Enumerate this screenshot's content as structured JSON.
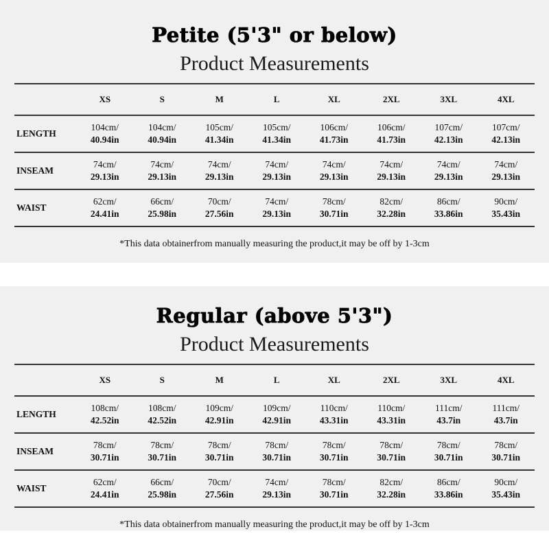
{
  "sizes": [
    "XS",
    "S",
    "M",
    "L",
    "XL",
    "2XL",
    "3XL",
    "4XL"
  ],
  "sections": [
    {
      "title": "Petite (5'3\" or below)",
      "subtitle": "Product Measurements",
      "rows": [
        {
          "label": "LENGTH",
          "cm": [
            "104cm/",
            "104cm/",
            "105cm/",
            "105cm/",
            "106cm/",
            "106cm/",
            "107cm/",
            "107cm/"
          ],
          "in": [
            "40.94in",
            "40.94in",
            "41.34in",
            "41.34in",
            "41.73in",
            "41.73in",
            "42.13in",
            "42.13in"
          ]
        },
        {
          "label": "INSEAM",
          "cm": [
            "74cm/",
            "74cm/",
            "74cm/",
            "74cm/",
            "74cm/",
            "74cm/",
            "74cm/",
            "74cm/"
          ],
          "in": [
            "29.13in",
            "29.13in",
            "29.13in",
            "29.13in",
            "29.13in",
            "29.13in",
            "29.13in",
            "29.13in"
          ]
        },
        {
          "label": "WAIST",
          "cm": [
            "62cm/",
            "66cm/",
            "70cm/",
            "74cm/",
            "78cm/",
            "82cm/",
            "86cm/",
            "90cm/"
          ],
          "in": [
            "24.41in",
            "25.98in",
            "27.56in",
            "29.13in",
            "30.71in",
            "32.28in",
            "33.86in",
            "35.43in"
          ]
        }
      ],
      "note": "*This data obtainerfrom manually measuring the product,it may be off by 1-3cm"
    },
    {
      "title": "Regular (above 5'3\")",
      "subtitle": "Product Measurements",
      "rows": [
        {
          "label": "LENGTH",
          "cm": [
            "108cm/",
            "108cm/",
            "109cm/",
            "109cm/",
            "110cm/",
            "110cm/",
            "111cm/",
            "111cm/"
          ],
          "in": [
            "42.52in",
            "42.52in",
            "42.91in",
            "42.91in",
            "43.31in",
            "43.31in",
            "43.7in",
            "43.7in"
          ]
        },
        {
          "label": "INSEAM",
          "cm": [
            "78cm/",
            "78cm/",
            "78cm/",
            "78cm/",
            "78cm/",
            "78cm/",
            "78cm/",
            "78cm/"
          ],
          "in": [
            "30.71in",
            "30.71in",
            "30.71in",
            "30.71in",
            "30.71in",
            "30.71in",
            "30.71in",
            "30.71in"
          ]
        },
        {
          "label": "WAIST",
          "cm": [
            "62cm/",
            "66cm/",
            "70cm/",
            "74cm/",
            "78cm/",
            "82cm/",
            "86cm/",
            "90cm/"
          ],
          "in": [
            "24.41in",
            "25.98in",
            "27.56in",
            "29.13in",
            "30.71in",
            "32.28in",
            "33.86in",
            "35.43in"
          ]
        }
      ],
      "note": "*This data obtainerfrom manually measuring the product,it may be off by 1-3cm"
    }
  ]
}
